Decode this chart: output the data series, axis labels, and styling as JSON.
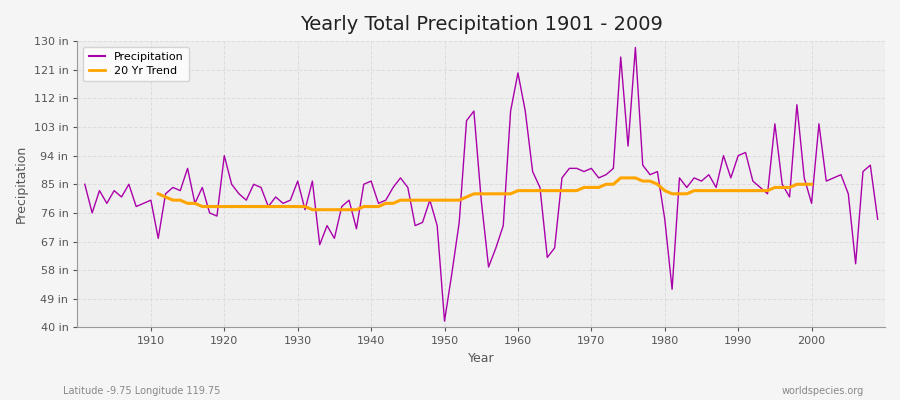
{
  "title": "Yearly Total Precipitation 1901 - 2009",
  "xlabel": "Year",
  "ylabel": "Precipitation",
  "subtitle_left": "Latitude -9.75 Longitude 119.75",
  "subtitle_right": "worldspecies.org",
  "years": [
    1901,
    1902,
    1903,
    1904,
    1905,
    1906,
    1907,
    1908,
    1909,
    1910,
    1911,
    1912,
    1913,
    1914,
    1915,
    1916,
    1917,
    1918,
    1919,
    1920,
    1921,
    1922,
    1923,
    1924,
    1925,
    1926,
    1927,
    1928,
    1929,
    1930,
    1931,
    1932,
    1933,
    1934,
    1935,
    1936,
    1937,
    1938,
    1939,
    1940,
    1941,
    1942,
    1943,
    1944,
    1945,
    1946,
    1947,
    1948,
    1949,
    1950,
    1951,
    1952,
    1953,
    1954,
    1955,
    1956,
    1957,
    1958,
    1959,
    1960,
    1961,
    1962,
    1963,
    1964,
    1965,
    1966,
    1967,
    1968,
    1969,
    1970,
    1971,
    1972,
    1973,
    1974,
    1975,
    1976,
    1977,
    1978,
    1979,
    1980,
    1981,
    1982,
    1983,
    1984,
    1985,
    1986,
    1987,
    1988,
    1989,
    1990,
    1991,
    1992,
    1993,
    1994,
    1995,
    1996,
    1997,
    1998,
    1999,
    2000,
    2001,
    2002,
    2003,
    2004,
    2005,
    2006,
    2007,
    2008,
    2009
  ],
  "precip": [
    85,
    76,
    83,
    79,
    83,
    81,
    85,
    78,
    79,
    80,
    68,
    82,
    84,
    83,
    90,
    79,
    84,
    76,
    75,
    94,
    85,
    82,
    80,
    85,
    84,
    78,
    81,
    79,
    80,
    86,
    77,
    86,
    66,
    72,
    68,
    78,
    80,
    71,
    85,
    86,
    79,
    80,
    84,
    87,
    84,
    72,
    73,
    80,
    72,
    42,
    57,
    73,
    105,
    108,
    80,
    59,
    65,
    72,
    108,
    120,
    108,
    89,
    84,
    62,
    65,
    87,
    90,
    90,
    89,
    90,
    87,
    88,
    90,
    125,
    97,
    128,
    91,
    88,
    89,
    74,
    52,
    87,
    84,
    87,
    86,
    88,
    84,
    94,
    87,
    94,
    95,
    86,
    84,
    82,
    104,
    85,
    81,
    110,
    87,
    79,
    104,
    86,
    87,
    88,
    82,
    60,
    89,
    91,
    74
  ],
  "trend": [
    null,
    null,
    null,
    null,
    null,
    null,
    null,
    null,
    null,
    null,
    82,
    81,
    80,
    80,
    79,
    79,
    78,
    78,
    78,
    78,
    78,
    78,
    78,
    78,
    78,
    78,
    78,
    78,
    78,
    78,
    78,
    77,
    77,
    77,
    77,
    77,
    77,
    77,
    78,
    78,
    78,
    79,
    79,
    80,
    80,
    80,
    80,
    80,
    80,
    80,
    80,
    80,
    81,
    82,
    82,
    82,
    82,
    82,
    82,
    83,
    83,
    83,
    83,
    83,
    83,
    83,
    83,
    83,
    84,
    84,
    84,
    85,
    85,
    87,
    87,
    87,
    86,
    86,
    85,
    83,
    82,
    82,
    82,
    83,
    83,
    83,
    83,
    83,
    83,
    83,
    83,
    83,
    83,
    83,
    84,
    84,
    84,
    85,
    85,
    85,
    null,
    null,
    null,
    null,
    null,
    null,
    null,
    null,
    null
  ],
  "precip_color": "#AA00AA",
  "trend_color": "#FFA500",
  "bg_color": "#F5F5F5",
  "plot_bg_color": "#EFEFEF",
  "grid_color": "#DDDDDD",
  "ylim": [
    40,
    130
  ],
  "yticks": [
    40,
    49,
    58,
    67,
    76,
    85,
    94,
    103,
    112,
    121,
    130
  ],
  "xlim": [
    1900,
    2010
  ],
  "xticks": [
    1910,
    1920,
    1930,
    1940,
    1950,
    1960,
    1970,
    1980,
    1990,
    2000
  ]
}
